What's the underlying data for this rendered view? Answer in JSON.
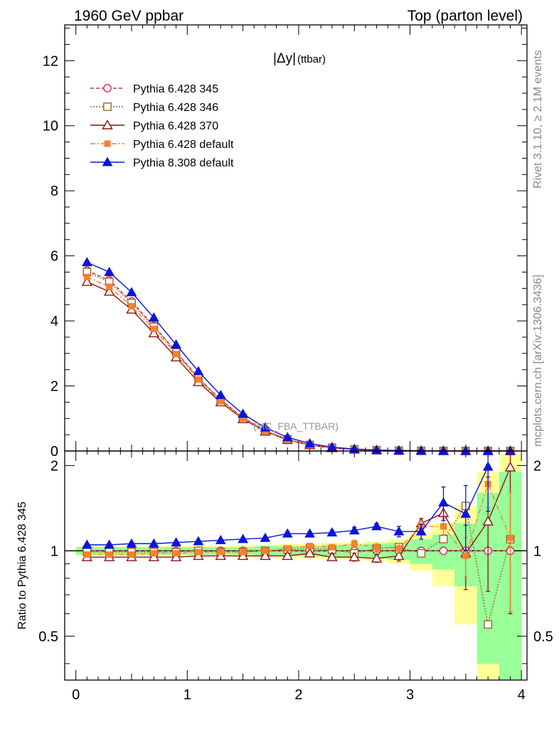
{
  "header": {
    "left": "1960 GeV ppbar",
    "right": "Top (parton level)"
  },
  "side_labels": {
    "rivet": "Rivet 3.1.10, ≥ 2.1M events",
    "mcplots": "mcplots.cern.ch [arXiv:1306.3436]"
  },
  "chart_data": {
    "type": "line",
    "title": "|Δy|",
    "title_sub": "(ttbar)",
    "analysis_label": "(MC_FBA_TTBAR)",
    "x": [
      0.1,
      0.3,
      0.5,
      0.7,
      0.9,
      1.1,
      1.3,
      1.5,
      1.7,
      1.9,
      2.1,
      2.3,
      2.5,
      2.7,
      2.9,
      3.1,
      3.3,
      3.5,
      3.7,
      3.9
    ],
    "xlim": [
      -0.1,
      4.05
    ],
    "x_ticks": [
      "0",
      "1",
      "2",
      "3",
      "4"
    ],
    "main": {
      "ylim": [
        0,
        13.1
      ],
      "y_ticks": [
        "0",
        "2",
        "4",
        "6",
        "8",
        "10",
        "12"
      ]
    },
    "ratio": {
      "ylabel": "Ratio to Pythia 6.428 345",
      "ylim": [
        0.35,
        2.25
      ],
      "y_ticks": [
        "0.5",
        "1",
        "2"
      ],
      "band_inner": [
        0.03,
        0.03,
        0.03,
        0.03,
        0.03,
        0.03,
        0.03,
        0.03,
        0.04,
        0.04,
        0.04,
        0.05,
        0.05,
        0.06,
        0.07,
        0.1,
        0.14,
        0.25,
        0.6,
        0.9
      ],
      "band_outer": [
        0.04,
        0.04,
        0.04,
        0.04,
        0.04,
        0.04,
        0.04,
        0.05,
        0.05,
        0.06,
        0.06,
        0.07,
        0.07,
        0.08,
        0.1,
        0.15,
        0.25,
        0.45,
        0.9,
        1.2
      ]
    },
    "series": [
      {
        "name": "Pythia 6.428 345",
        "color": "#c83250",
        "dash": "5,3",
        "marker": "circle-open",
        "values": [
          5.55,
          5.25,
          4.6,
          3.85,
          3.05,
          2.25,
          1.58,
          1.03,
          0.63,
          0.36,
          0.19,
          0.1,
          0.05,
          0.025,
          0.012,
          0.006,
          0.003,
          0.0014,
          0.0006,
          0.0003
        ],
        "ratio": [
          1.0,
          1.0,
          1.0,
          1.0,
          1.0,
          1.0,
          1.0,
          1.0,
          1.0,
          1.0,
          1.0,
          1.0,
          1.0,
          1.0,
          1.0,
          1.0,
          1.0,
          1.0,
          1.0,
          1.0
        ]
      },
      {
        "name": "Pythia 6.428 346",
        "color": "#a06428",
        "dash": "2,2",
        "marker": "square-open",
        "values": [
          5.5,
          5.2,
          4.55,
          3.82,
          3.03,
          2.24,
          1.56,
          1.02,
          0.62,
          0.36,
          0.19,
          0.1,
          0.05,
          0.025,
          0.012,
          0.006,
          0.003,
          0.0014,
          0.0006,
          0.0003
        ],
        "ratio": [
          0.99,
          0.99,
          0.99,
          0.99,
          0.99,
          1.0,
          0.99,
          0.99,
          1.0,
          1.01,
          1.02,
          1.01,
          0.98,
          1.02,
          1.03,
          0.98,
          1.1,
          1.44,
          0.55,
          1.1
        ]
      },
      {
        "name": "Pythia 6.428 370",
        "color": "#8c1414",
        "dash": "",
        "marker": "triangle-open",
        "values": [
          5.2,
          4.9,
          4.35,
          3.62,
          2.88,
          2.12,
          1.5,
          0.98,
          0.6,
          0.34,
          0.18,
          0.09,
          0.047,
          0.023,
          0.011,
          0.006,
          0.003,
          0.0014,
          0.0006,
          0.0003
        ],
        "ratio": [
          0.95,
          0.95,
          0.95,
          0.95,
          0.95,
          0.96,
          0.96,
          0.96,
          0.96,
          0.96,
          0.98,
          0.95,
          0.95,
          0.94,
          0.96,
          1.25,
          1.36,
          0.98,
          1.27,
          1.97
        ],
        "ratio_err": [
          0.01,
          0.01,
          0.01,
          0.01,
          0.01,
          0.01,
          0.01,
          0.01,
          0.01,
          0.02,
          0.02,
          0.02,
          0.03,
          0.03,
          0.04,
          0.05,
          0.08,
          0.25,
          0.55,
          1.37
        ]
      },
      {
        "name": "Pythia 6.428 default",
        "color": "#f5822d",
        "dash": "7,3,2,3",
        "marker": "square-filled",
        "values": [
          5.35,
          5.05,
          4.45,
          3.75,
          2.98,
          2.2,
          1.53,
          1.0,
          0.61,
          0.35,
          0.185,
          0.095,
          0.048,
          0.024,
          0.012,
          0.006,
          0.003,
          0.0014,
          0.0006,
          0.0003
        ],
        "ratio": [
          0.97,
          0.97,
          0.97,
          0.98,
          0.98,
          0.99,
          0.99,
          0.99,
          1.0,
          1.02,
          1.04,
          1.03,
          1.06,
          1.03,
          1.02,
          1.22,
          1.22,
          0.96,
          1.72,
          1.11
        ],
        "ratio_err": [
          0.01,
          0.01,
          0.01,
          0.01,
          0.01,
          0.01,
          0.01,
          0.01,
          0.01,
          0.02,
          0.02,
          0.02,
          0.03,
          0.03,
          0.04,
          0.05,
          0.08,
          0.15,
          0.3,
          0.5
        ]
      },
      {
        "name": "Pythia 8.308 default",
        "color": "#0a14dc",
        "dash": "",
        "marker": "triangle-filled",
        "values": [
          5.8,
          5.5,
          4.88,
          4.1,
          3.27,
          2.45,
          1.72,
          1.14,
          0.72,
          0.42,
          0.23,
          0.12,
          0.062,
          0.031,
          0.015,
          0.008,
          0.004,
          0.0018,
          0.0008,
          0.0004
        ],
        "ratio": [
          1.05,
          1.05,
          1.06,
          1.06,
          1.07,
          1.08,
          1.09,
          1.1,
          1.11,
          1.15,
          1.15,
          1.16,
          1.18,
          1.22,
          1.17,
          1.17,
          1.48,
          1.35,
          1.98,
          null
        ],
        "ratio_err": [
          0.01,
          0.01,
          0.01,
          0.01,
          0.01,
          0.01,
          0.01,
          0.01,
          0.01,
          0.02,
          0.02,
          0.02,
          0.03,
          0.03,
          0.05,
          0.07,
          0.2,
          0.35,
          0.6,
          0
        ]
      }
    ]
  }
}
